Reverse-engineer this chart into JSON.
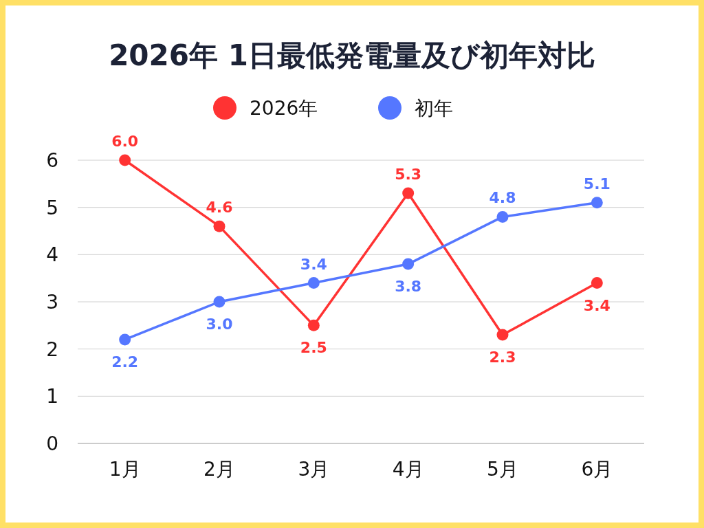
{
  "chart_data": {
    "type": "line",
    "title": "2026年 1日最低発電量及び初年対比",
    "categories": [
      "1月",
      "2月",
      "3月",
      "4月",
      "5月",
      "6月"
    ],
    "series": [
      {
        "name": "2026年",
        "color": "#ff3333",
        "values": [
          6.0,
          4.6,
          2.5,
          5.3,
          2.3,
          3.4
        ],
        "value_labels": [
          "6.0",
          "4.6",
          "2.5",
          "5.3",
          "2.3",
          "3.4"
        ]
      },
      {
        "name": "初年",
        "color": "#5577ff",
        "values": [
          2.2,
          3.0,
          3.4,
          3.8,
          4.8,
          5.1
        ],
        "value_labels": [
          "2.2",
          "3.0",
          "3.4",
          "3.8",
          "4.8",
          "5.1"
        ]
      }
    ],
    "ylim": [
      0,
      6
    ],
    "yticks": [
      0,
      1,
      2,
      3,
      4,
      5,
      6
    ],
    "grid": "y",
    "legend": "top",
    "marker": "circle",
    "line_style": "solid"
  }
}
